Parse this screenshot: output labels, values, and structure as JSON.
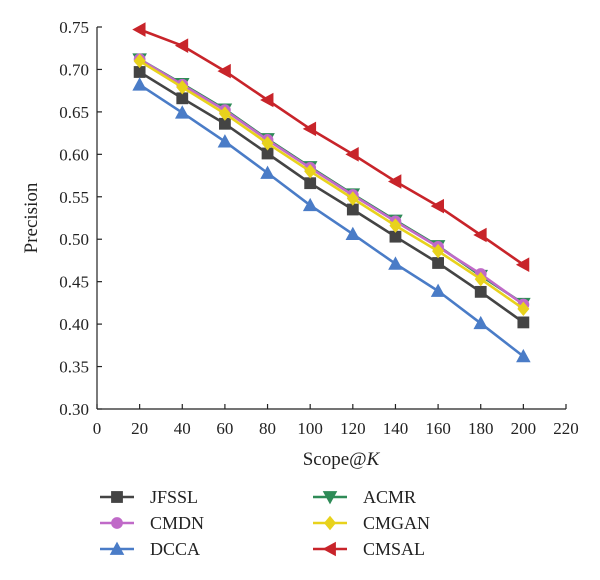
{
  "chart_data": {
    "type": "line",
    "title": "",
    "xlabel": "Scope@",
    "xlabel_italic": "K",
    "ylabel": "Precision",
    "xlim": [
      0,
      220
    ],
    "ylim": [
      0.3,
      0.75
    ],
    "xticks": [
      "0",
      "20",
      "40",
      "60",
      "80",
      "100",
      "120",
      "140",
      "160",
      "180",
      "200",
      "220"
    ],
    "yticks": [
      "0.30",
      "0.35",
      "0.40",
      "0.45",
      "0.50",
      "0.55",
      "0.60",
      "0.65",
      "0.70",
      "0.75"
    ],
    "grid": false,
    "legend_position": "bottom",
    "x": [
      20,
      40,
      60,
      80,
      100,
      120,
      140,
      160,
      180,
      200
    ],
    "series": [
      {
        "name": "JFSSL",
        "color": "#444444",
        "marker": "square",
        "values": [
          0.697,
          0.666,
          0.636,
          0.601,
          0.566,
          0.535,
          0.503,
          0.472,
          0.438,
          0.402
        ]
      },
      {
        "name": "ACMR",
        "color": "#2e8b57",
        "marker": "triangle-down",
        "values": [
          0.712,
          0.683,
          0.653,
          0.618,
          0.585,
          0.553,
          0.522,
          0.492,
          0.457,
          0.424
        ]
      },
      {
        "name": "CMDN",
        "color": "#c06ac8",
        "marker": "circle",
        "values": [
          0.712,
          0.682,
          0.652,
          0.617,
          0.584,
          0.552,
          0.521,
          0.491,
          0.459,
          0.423
        ]
      },
      {
        "name": "CMGAN",
        "color": "#e8d21c",
        "marker": "diamond",
        "values": [
          0.71,
          0.679,
          0.648,
          0.613,
          0.58,
          0.548,
          0.516,
          0.486,
          0.453,
          0.418
        ]
      },
      {
        "name": "DCCA",
        "color": "#4a7cc7",
        "marker": "triangle-up",
        "values": [
          0.682,
          0.649,
          0.615,
          0.578,
          0.54,
          0.506,
          0.471,
          0.439,
          0.401,
          0.362
        ]
      },
      {
        "name": "CMSAL",
        "color": "#c8242a",
        "marker": "triangle-left",
        "values": [
          0.747,
          0.728,
          0.698,
          0.664,
          0.63,
          0.6,
          0.568,
          0.539,
          0.505,
          0.47
        ]
      }
    ]
  }
}
